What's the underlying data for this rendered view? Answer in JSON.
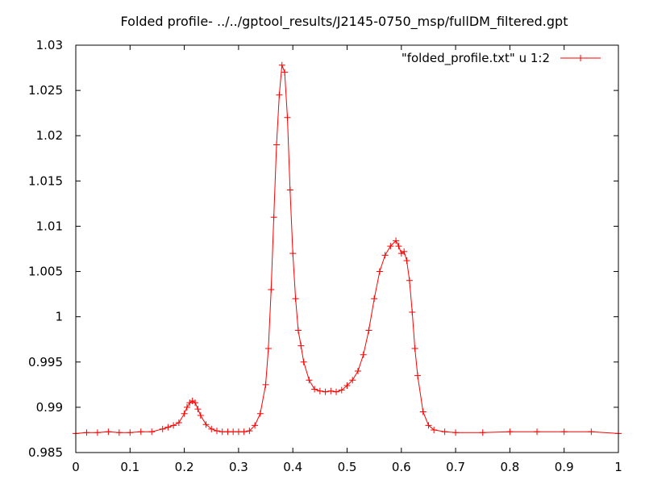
{
  "chart_data": {
    "type": "line",
    "title": "Folded profile- ../../gptool_results/J2145-0750_msp/fullDM_filtered.gpt",
    "xlabel": "",
    "ylabel": "",
    "xlim": [
      0,
      1
    ],
    "ylim": [
      0.985,
      1.03
    ],
    "grid": false,
    "legend_position": "top-right",
    "x_ticks": [
      "0",
      "0.1",
      "0.2",
      "0.3",
      "0.4",
      "0.5",
      "0.6",
      "0.7",
      "0.8",
      "0.9",
      "1"
    ],
    "y_ticks": [
      "0.985",
      "0.99",
      "0.995",
      "1",
      "1.005",
      "1.01",
      "1.015",
      "1.02",
      "1.025",
      "1.03"
    ],
    "series": [
      {
        "name": "\"folded_profile.txt\" u 1:2",
        "color": "#ff0000",
        "marker": "plus",
        "x": [
          0.0,
          0.02,
          0.04,
          0.06,
          0.08,
          0.1,
          0.12,
          0.14,
          0.16,
          0.17,
          0.18,
          0.19,
          0.2,
          0.205,
          0.21,
          0.215,
          0.22,
          0.225,
          0.23,
          0.24,
          0.25,
          0.26,
          0.27,
          0.28,
          0.29,
          0.3,
          0.31,
          0.32,
          0.33,
          0.34,
          0.35,
          0.355,
          0.36,
          0.365,
          0.37,
          0.375,
          0.38,
          0.385,
          0.39,
          0.395,
          0.4,
          0.405,
          0.41,
          0.415,
          0.42,
          0.43,
          0.44,
          0.45,
          0.46,
          0.47,
          0.48,
          0.49,
          0.5,
          0.51,
          0.52,
          0.53,
          0.54,
          0.55,
          0.56,
          0.57,
          0.58,
          0.59,
          0.595,
          0.6,
          0.605,
          0.61,
          0.615,
          0.62,
          0.625,
          0.63,
          0.64,
          0.65,
          0.66,
          0.68,
          0.7,
          0.75,
          0.8,
          0.85,
          0.9,
          0.95,
          1.0
        ],
        "values": [
          0.9871,
          0.9872,
          0.9872,
          0.9873,
          0.9872,
          0.9872,
          0.9873,
          0.9873,
          0.9876,
          0.9878,
          0.988,
          0.9883,
          0.9893,
          0.99,
          0.9905,
          0.9907,
          0.9905,
          0.9898,
          0.9891,
          0.9881,
          0.9876,
          0.9874,
          0.9873,
          0.9873,
          0.9873,
          0.9873,
          0.9873,
          0.9874,
          0.988,
          0.9893,
          0.9925,
          0.9965,
          1.003,
          1.011,
          1.019,
          1.0245,
          1.0278,
          1.027,
          1.022,
          1.014,
          1.007,
          1.002,
          0.9985,
          0.9968,
          0.995,
          0.993,
          0.992,
          0.9918,
          0.9917,
          0.9918,
          0.9917,
          0.9919,
          0.9924,
          0.993,
          0.994,
          0.9958,
          0.9985,
          1.002,
          1.005,
          1.0068,
          1.0078,
          1.0084,
          1.0078,
          1.007,
          1.0072,
          1.0062,
          1.004,
          1.0005,
          0.9965,
          0.9935,
          0.9895,
          0.988,
          0.9875,
          0.9873,
          0.9872,
          0.9872,
          0.9873,
          0.9873,
          0.9873,
          0.9873,
          0.9871
        ]
      }
    ]
  }
}
